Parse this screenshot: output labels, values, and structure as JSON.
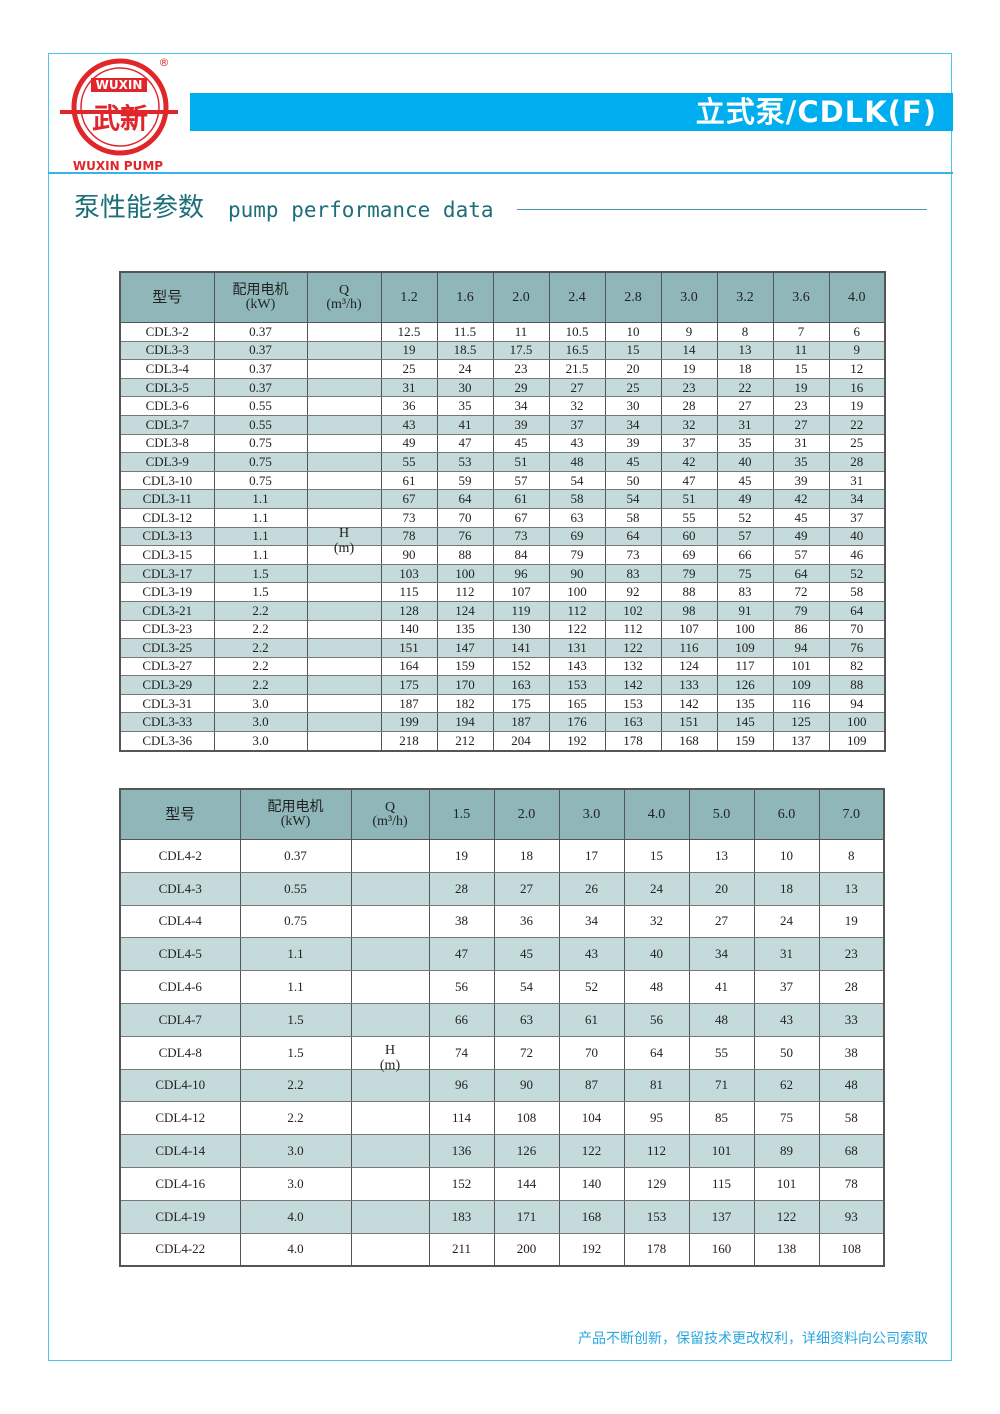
{
  "brand": {
    "logo_text_top": "WUXIN",
    "logo_text_cn": "武新",
    "logo_text_bottom": "WUXIN PUMP",
    "registered": "®",
    "accent": "#00aeef",
    "logo_color": "#e0262b"
  },
  "header": {
    "title": "立式泵/CDLK(F)"
  },
  "section": {
    "title_cn": "泵性能参数",
    "title_en": "pump performance data"
  },
  "table1": {
    "headers": {
      "model": "型号",
      "motor_line1": "配用电机",
      "motor_line2": "(kW)",
      "q_line1": "Q",
      "q_line2": "(m³/h)",
      "h_line1": "H",
      "h_line2": "(m)"
    },
    "flows": [
      "1.2",
      "1.6",
      "2.0",
      "2.4",
      "2.8",
      "3.0",
      "3.2",
      "3.6",
      "4.0"
    ],
    "rows": [
      [
        "CDL3-2",
        "0.37",
        "12.5",
        "11.5",
        "11",
        "10.5",
        "10",
        "9",
        "8",
        "7",
        "6"
      ],
      [
        "CDL3-3",
        "0.37",
        "19",
        "18.5",
        "17.5",
        "16.5",
        "15",
        "14",
        "13",
        "11",
        "9"
      ],
      [
        "CDL3-4",
        "0.37",
        "25",
        "24",
        "23",
        "21.5",
        "20",
        "19",
        "18",
        "15",
        "12"
      ],
      [
        "CDL3-5",
        "0.37",
        "31",
        "30",
        "29",
        "27",
        "25",
        "23",
        "22",
        "19",
        "16"
      ],
      [
        "CDL3-6",
        "0.55",
        "36",
        "35",
        "34",
        "32",
        "30",
        "28",
        "27",
        "23",
        "19"
      ],
      [
        "CDL3-7",
        "0.55",
        "43",
        "41",
        "39",
        "37",
        "34",
        "32",
        "31",
        "27",
        "22"
      ],
      [
        "CDL3-8",
        "0.75",
        "49",
        "47",
        "45",
        "43",
        "39",
        "37",
        "35",
        "31",
        "25"
      ],
      [
        "CDL3-9",
        "0.75",
        "55",
        "53",
        "51",
        "48",
        "45",
        "42",
        "40",
        "35",
        "28"
      ],
      [
        "CDL3-10",
        "0.75",
        "61",
        "59",
        "57",
        "54",
        "50",
        "47",
        "45",
        "39",
        "31"
      ],
      [
        "CDL3-11",
        "1.1",
        "67",
        "64",
        "61",
        "58",
        "54",
        "51",
        "49",
        "42",
        "34"
      ],
      [
        "CDL3-12",
        "1.1",
        "73",
        "70",
        "67",
        "63",
        "58",
        "55",
        "52",
        "45",
        "37"
      ],
      [
        "CDL3-13",
        "1.1",
        "78",
        "76",
        "73",
        "69",
        "64",
        "60",
        "57",
        "49",
        "40"
      ],
      [
        "CDL3-15",
        "1.1",
        "90",
        "88",
        "84",
        "79",
        "73",
        "69",
        "66",
        "57",
        "46"
      ],
      [
        "CDL3-17",
        "1.5",
        "103",
        "100",
        "96",
        "90",
        "83",
        "79",
        "75",
        "64",
        "52"
      ],
      [
        "CDL3-19",
        "1.5",
        "115",
        "112",
        "107",
        "100",
        "92",
        "88",
        "83",
        "72",
        "58"
      ],
      [
        "CDL3-21",
        "2.2",
        "128",
        "124",
        "119",
        "112",
        "102",
        "98",
        "91",
        "79",
        "64"
      ],
      [
        "CDL3-23",
        "2.2",
        "140",
        "135",
        "130",
        "122",
        "112",
        "107",
        "100",
        "86",
        "70"
      ],
      [
        "CDL3-25",
        "2.2",
        "151",
        "147",
        "141",
        "131",
        "122",
        "116",
        "109",
        "94",
        "76"
      ],
      [
        "CDL3-27",
        "2.2",
        "164",
        "159",
        "152",
        "143",
        "132",
        "124",
        "117",
        "101",
        "82"
      ],
      [
        "CDL3-29",
        "2.2",
        "175",
        "170",
        "163",
        "153",
        "142",
        "133",
        "126",
        "109",
        "88"
      ],
      [
        "CDL3-31",
        "3.0",
        "187",
        "182",
        "175",
        "165",
        "153",
        "142",
        "135",
        "116",
        "94"
      ],
      [
        "CDL3-33",
        "3.0",
        "199",
        "194",
        "187",
        "176",
        "163",
        "151",
        "145",
        "125",
        "100"
      ],
      [
        "CDL3-36",
        "3.0",
        "218",
        "212",
        "204",
        "192",
        "178",
        "168",
        "159",
        "137",
        "109"
      ]
    ]
  },
  "table2": {
    "headers": {
      "model": "型号",
      "motor_line1": "配用电机",
      "motor_line2": "(kW)",
      "q_line1": "Q",
      "q_line2": "(m³/h)",
      "h_line1": "H",
      "h_line2": "(m)"
    },
    "flows": [
      "1.5",
      "2.0",
      "3.0",
      "4.0",
      "5.0",
      "6.0",
      "7.0"
    ],
    "rows": [
      [
        "CDL4-2",
        "0.37",
        "19",
        "18",
        "17",
        "15",
        "13",
        "10",
        "8"
      ],
      [
        "CDL4-3",
        "0.55",
        "28",
        "27",
        "26",
        "24",
        "20",
        "18",
        "13"
      ],
      [
        "CDL4-4",
        "0.75",
        "38",
        "36",
        "34",
        "32",
        "27",
        "24",
        "19"
      ],
      [
        "CDL4-5",
        "1.1",
        "47",
        "45",
        "43",
        "40",
        "34",
        "31",
        "23"
      ],
      [
        "CDL4-6",
        "1.1",
        "56",
        "54",
        "52",
        "48",
        "41",
        "37",
        "28"
      ],
      [
        "CDL4-7",
        "1.5",
        "66",
        "63",
        "61",
        "56",
        "48",
        "43",
        "33"
      ],
      [
        "CDL4-8",
        "1.5",
        "74",
        "72",
        "70",
        "64",
        "55",
        "50",
        "38"
      ],
      [
        "CDL4-10",
        "2.2",
        "96",
        "90",
        "87",
        "81",
        "71",
        "62",
        "48"
      ],
      [
        "CDL4-12",
        "2.2",
        "114",
        "108",
        "104",
        "95",
        "85",
        "75",
        "58"
      ],
      [
        "CDL4-14",
        "3.0",
        "136",
        "126",
        "122",
        "112",
        "101",
        "89",
        "68"
      ],
      [
        "CDL4-16",
        "3.0",
        "152",
        "144",
        "140",
        "129",
        "115",
        "101",
        "78"
      ],
      [
        "CDL4-19",
        "4.0",
        "183",
        "171",
        "168",
        "153",
        "137",
        "122",
        "93"
      ],
      [
        "CDL4-22",
        "4.0",
        "211",
        "200",
        "192",
        "178",
        "160",
        "138",
        "108"
      ]
    ]
  },
  "footer": {
    "note": "产品不断创新，保留技术更改权利，详细资料向公司索取"
  }
}
